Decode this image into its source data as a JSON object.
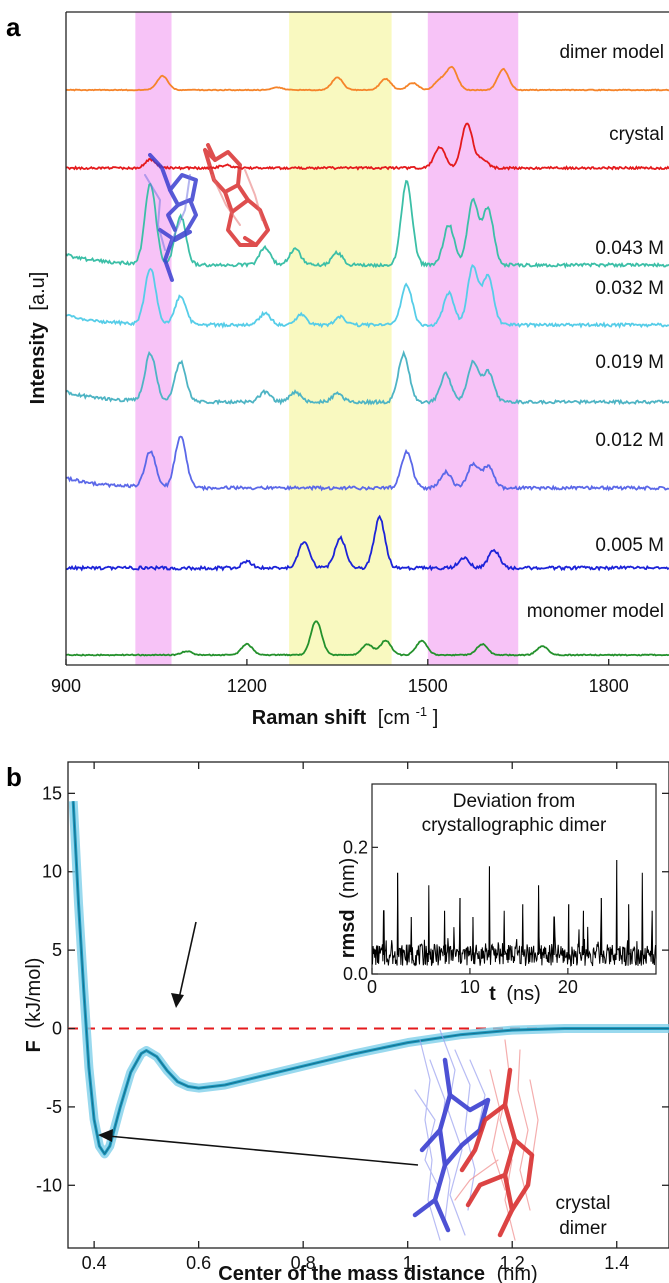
{
  "chart_data": [
    {
      "panel": "a",
      "type": "line",
      "xlabel": "Raman shift",
      "xlabel_unit": "[cm-1]",
      "xlabel_unit_base": "[cm",
      "xlabel_unit_sup": "-1",
      "xlabel_unit_close": "]",
      "ylabel": "Intensity",
      "ylabel_unit": "[a.u]",
      "xlim": [
        900,
        1900
      ],
      "xticks": [
        900,
        1200,
        1500,
        1800
      ],
      "highlight_bands": [
        {
          "from": 1015,
          "to": 1075,
          "color": "#f7c3f7"
        },
        {
          "from": 1270,
          "to": 1440,
          "color": "#f9f9c0"
        },
        {
          "from": 1500,
          "to": 1650,
          "color": "#f7c3f7"
        }
      ],
      "series": [
        {
          "name": "dimer model",
          "color": "#f5842a",
          "peaks": [
            [
              1060,
              1.0
            ],
            [
              1250,
              0.2
            ],
            [
              1350,
              0.9
            ],
            [
              1430,
              0.8
            ],
            [
              1475,
              0.5
            ],
            [
              1520,
              0.7
            ],
            [
              1540,
              1.6
            ],
            [
              1625,
              1.5
            ]
          ]
        },
        {
          "name": "crystal",
          "color": "#e41a1c",
          "peaks": [
            [
              1040,
              0.6
            ],
            [
              1165,
              0.2
            ],
            [
              1520,
              1.5
            ],
            [
              1565,
              3.2
            ],
            [
              1590,
              0.6
            ]
          ]
        },
        {
          "name": "0.043 M",
          "color": "#3cbfa7",
          "peaks": [
            [
              1040,
              4.0
            ],
            [
              1090,
              2.4
            ],
            [
              1230,
              0.9
            ],
            [
              1280,
              0.8
            ],
            [
              1350,
              0.6
            ],
            [
              1465,
              4.2
            ],
            [
              1535,
              2.0
            ],
            [
              1575,
              3.2
            ],
            [
              1600,
              2.8
            ]
          ]
        },
        {
          "name": "0.032 M",
          "color": "#56cde8",
          "peaks": [
            [
              1040,
              2.8
            ],
            [
              1090,
              1.4
            ],
            [
              1230,
              0.6
            ],
            [
              1290,
              0.5
            ],
            [
              1355,
              0.4
            ],
            [
              1465,
              2.0
            ],
            [
              1535,
              1.6
            ],
            [
              1575,
              2.9
            ],
            [
              1600,
              2.4
            ]
          ]
        },
        {
          "name": "0.019 M",
          "color": "#4eb4c4",
          "peaks": [
            [
              1040,
              2.4
            ],
            [
              1090,
              2.0
            ],
            [
              1230,
              0.5
            ],
            [
              1280,
              0.5
            ],
            [
              1350,
              0.4
            ],
            [
              1460,
              2.4
            ],
            [
              1530,
              1.4
            ],
            [
              1575,
              2.0
            ],
            [
              1600,
              1.5
            ]
          ]
        },
        {
          "name": "0.012 M",
          "color": "#5b68e8",
          "peaks": [
            [
              1040,
              1.8
            ],
            [
              1090,
              2.6
            ],
            [
              1465,
              1.8
            ],
            [
              1530,
              0.8
            ],
            [
              1575,
              1.2
            ],
            [
              1600,
              1.1
            ]
          ]
        },
        {
          "name": "0.005 M",
          "color": "#1c23d8",
          "peaks": [
            [
              1200,
              0.3
            ],
            [
              1295,
              1.3
            ],
            [
              1355,
              1.5
            ],
            [
              1420,
              2.5
            ],
            [
              1560,
              0.5
            ],
            [
              1610,
              0.9
            ]
          ]
        },
        {
          "name": "monomer model",
          "color": "#24912c",
          "peaks": [
            [
              1100,
              0.2
            ],
            [
              1200,
              0.6
            ],
            [
              1315,
              1.9
            ],
            [
              1400,
              0.6
            ],
            [
              1430,
              0.8
            ],
            [
              1490,
              0.8
            ],
            [
              1590,
              0.6
            ],
            [
              1690,
              0.5
            ]
          ]
        }
      ]
    },
    {
      "panel": "b",
      "type": "line",
      "xlabel": "Center of the mass distance",
      "xlabel_unit": "(nm)",
      "ylabel": "F",
      "ylabel_unit": "(kJ/mol)",
      "xlim": [
        0.35,
        1.5
      ],
      "ylim": [
        -14,
        17
      ],
      "xticks": [
        0.4,
        0.6,
        0.8,
        1.0,
        1.2,
        1.4
      ],
      "yticks": [
        15,
        10,
        5,
        0,
        -5,
        -10
      ],
      "zero_line": {
        "y": 0,
        "color": "#e41a1c",
        "style": "dashed"
      },
      "series": [
        {
          "color": "#1f9bc0",
          "x": [
            0.36,
            0.37,
            0.38,
            0.39,
            0.4,
            0.41,
            0.42,
            0.43,
            0.45,
            0.47,
            0.49,
            0.5,
            0.52,
            0.54,
            0.56,
            0.58,
            0.6,
            0.65,
            0.7,
            0.8,
            0.9,
            1.0,
            1.1,
            1.2,
            1.3,
            1.4,
            1.5
          ],
          "y": [
            14.5,
            8.0,
            2.5,
            -2.5,
            -5.8,
            -7.5,
            -8.0,
            -7.5,
            -5.0,
            -2.8,
            -1.6,
            -1.4,
            -1.8,
            -2.7,
            -3.4,
            -3.7,
            -3.8,
            -3.6,
            -3.2,
            -2.4,
            -1.6,
            -0.9,
            -0.4,
            -0.1,
            0.0,
            0.0,
            0.0
          ]
        }
      ],
      "annotations": [
        {
          "text": "crystal",
          "text2": "dimer"
        }
      ],
      "inset": {
        "title_line1": "Deviation from",
        "title_line2": "crystallographic dimer",
        "xlabel": "t",
        "xlabel_unit": "(ns)",
        "ylabel": "rmsd",
        "ylabel_unit": "(nm)",
        "xlim": [
          0,
          29
        ],
        "ylim": [
          0,
          0.3
        ],
        "xticks": [
          0,
          10,
          20
        ],
        "yticks": [
          0.0,
          0.2
        ],
        "ytick_labels": [
          "0.0",
          "0.2"
        ],
        "series_color": "#000000",
        "baseline": 0.03,
        "spikes": [
          [
            1.2,
            0.1
          ],
          [
            2.6,
            0.16
          ],
          [
            4.0,
            0.09
          ],
          [
            5.8,
            0.14
          ],
          [
            7.4,
            0.1
          ],
          [
            9.0,
            0.12
          ],
          [
            10.3,
            0.09
          ],
          [
            12.0,
            0.17
          ],
          [
            13.5,
            0.1
          ],
          [
            15.4,
            0.11
          ],
          [
            17.0,
            0.14
          ],
          [
            18.6,
            0.09
          ],
          [
            20.1,
            0.11
          ],
          [
            21.6,
            0.1
          ],
          [
            23.4,
            0.12
          ],
          [
            25.0,
            0.18
          ],
          [
            26.2,
            0.11
          ],
          [
            27.6,
            0.16
          ],
          [
            28.6,
            0.1
          ]
        ]
      }
    }
  ]
}
